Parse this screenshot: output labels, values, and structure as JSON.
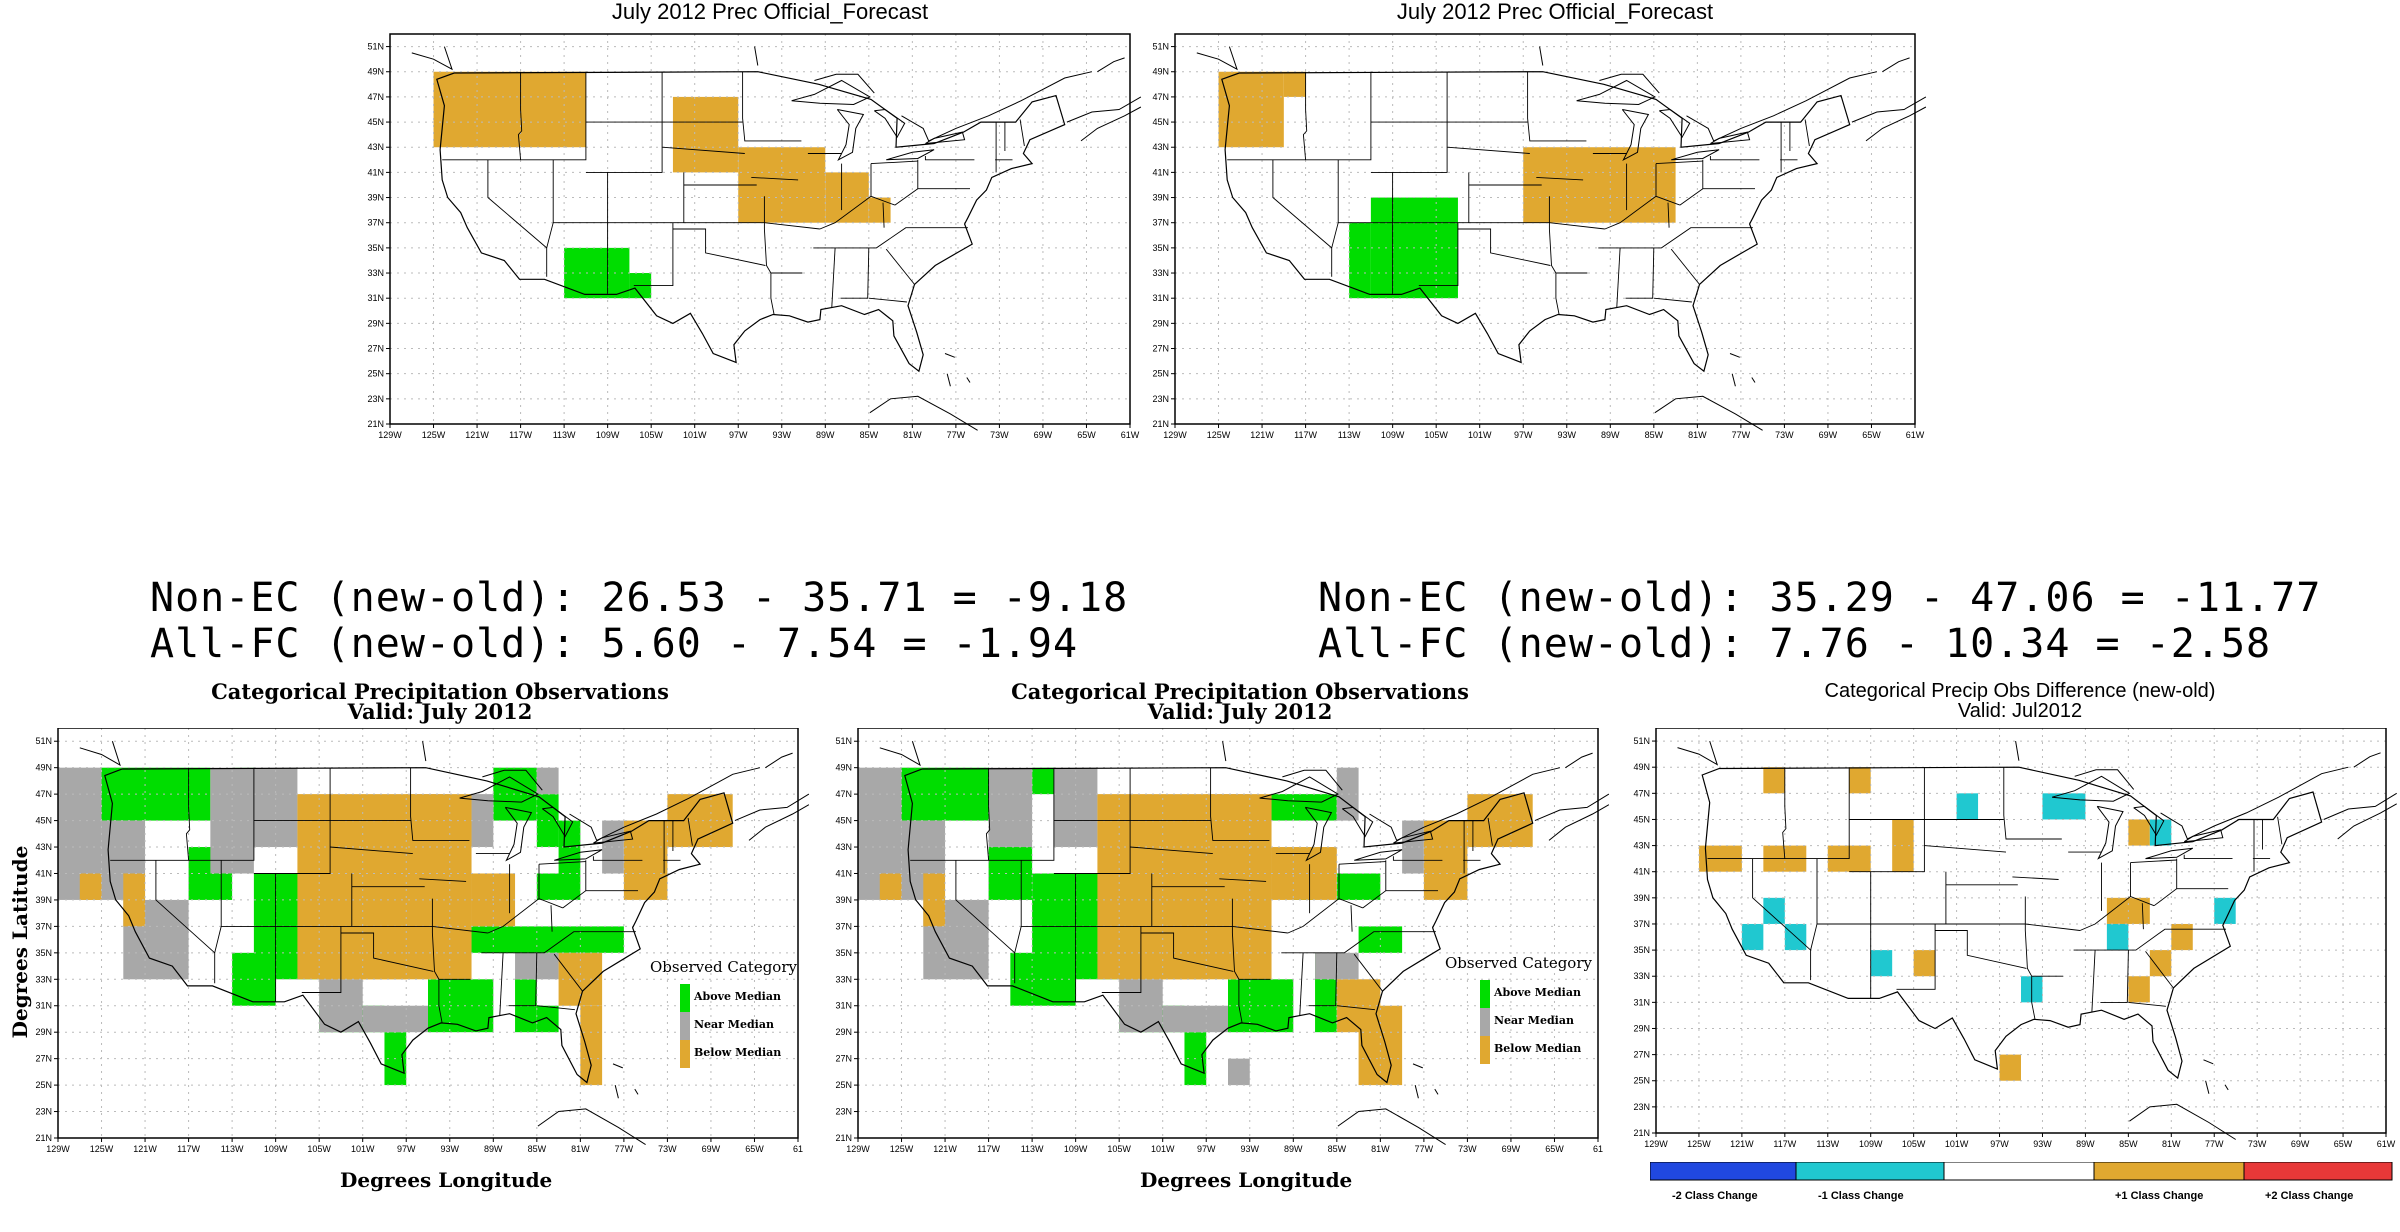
{
  "colors": {
    "above": "#00dd00",
    "near": "#a8a8a8",
    "below": "#e0a830",
    "minus1": "#20c8d0",
    "minus2": "#2048e0",
    "plus1": "#e0a830",
    "plus2": "#e83838"
  },
  "axis": {
    "lat_ticks": [
      "21N",
      "23N",
      "25N",
      "27N",
      "29N",
      "31N",
      "33N",
      "35N",
      "37N",
      "39N",
      "41N",
      "43N",
      "45N",
      "47N",
      "49N",
      "51N"
    ],
    "lon_ticks_top": [
      "129W",
      "125W",
      "121W",
      "117W",
      "113W",
      "109W",
      "105W",
      "101W",
      "97W",
      "93W",
      "89W",
      "85W",
      "81W",
      "77W",
      "73W",
      "69W",
      "65W",
      "61W"
    ],
    "lon_ticks_bottom": [
      "129W",
      "125W",
      "121W",
      "117W",
      "113W",
      "109W",
      "105W",
      "101W",
      "97W",
      "93W",
      "89W",
      "85W",
      "81W",
      "77W",
      "73W",
      "69W",
      "65W",
      "61"
    ],
    "xlabel": "Degrees Longitude",
    "ylabel": "Degrees Latitude"
  },
  "top_left": {
    "title": "July 2012 Prec Official_Forecast",
    "cells": {
      "below": [
        [
          -125,
          49,
          -111,
          43
        ],
        [
          -103,
          47,
          -97,
          41
        ],
        [
          -97,
          43,
          -89,
          37
        ],
        [
          -89,
          41,
          -85,
          37
        ],
        [
          -85,
          39,
          -83,
          37
        ]
      ],
      "above": [
        [
          -113,
          35,
          -107,
          31
        ],
        [
          -107,
          33,
          -105,
          31
        ]
      ]
    }
  },
  "top_right": {
    "title": "July 2012 Prec Official_Forecast",
    "cells": {
      "below": [
        [
          -125,
          49,
          -119,
          43
        ],
        [
          -119,
          49,
          -117,
          47
        ],
        [
          -97,
          43,
          -83,
          37
        ]
      ],
      "above": [
        [
          -111,
          39,
          -103,
          31
        ],
        [
          -113,
          37,
          -111,
          31
        ]
      ]
    }
  },
  "scores_left": {
    "line1": "Non-EC (new-old): 26.53 - 35.71 = -9.18",
    "line2": "All-FC (new-old): 5.60 - 7.54 = -1.94"
  },
  "scores_right": {
    "line1": "Non-EC (new-old): 35.29 - 47.06 = -11.77",
    "line2": "All-FC (new-old): 7.76 - 10.34 = -2.58"
  },
  "obs_left": {
    "title": "Categorical Precipitation Observations",
    "subtitle": "Valid: July 2012"
  },
  "obs_right": {
    "title": "Categorical Precipitation Observations",
    "subtitle": "Valid: July 2012"
  },
  "legend": {
    "title": "Observed Category",
    "items": [
      "Above Median",
      "Near Median",
      "Below Median"
    ]
  },
  "diff": {
    "title": "Categorical Precip Obs Difference (new-old)",
    "subtitle": "Valid: Jul2012",
    "colorbar": [
      "-2 Class Change",
      "-1 Class Change",
      "+1 Class Change",
      "+2 Class Change"
    ],
    "cells": {
      "plus1": [
        [
          -125,
          43,
          -121,
          41
        ],
        [
          -119,
          49,
          -117,
          47
        ],
        [
          -119,
          43,
          -115,
          41
        ],
        [
          -111,
          49,
          -109,
          47
        ],
        [
          -113,
          43,
          -109,
          41
        ],
        [
          -107,
          45,
          -105,
          41
        ],
        [
          -105,
          35,
          -103,
          33
        ],
        [
          -97,
          27,
          -95,
          25
        ],
        [
          -87,
          39,
          -83,
          37
        ],
        [
          -85,
          45,
          -83,
          43
        ],
        [
          -81,
          37,
          -79,
          35
        ],
        [
          -85,
          33,
          -83,
          31
        ],
        [
          -83,
          35,
          -81,
          33
        ]
      ],
      "minus1": [
        [
          -119,
          39,
          -117,
          37
        ],
        [
          -117,
          37,
          -115,
          35
        ],
        [
          -121,
          37,
          -119,
          35
        ],
        [
          -109,
          35,
          -107,
          33
        ],
        [
          -95,
          33,
          -93,
          31
        ],
        [
          -93,
          47,
          -89,
          45
        ],
        [
          -101,
          47,
          -99,
          45
        ],
        [
          -87,
          37,
          -85,
          35
        ],
        [
          -83,
          45,
          -81,
          43
        ],
        [
          -77,
          39,
          -75,
          37
        ]
      ]
    }
  },
  "obs_left_cells": {
    "above": [
      [
        -125,
        49,
        -115,
        45
      ],
      [
        -113,
        49,
        -111,
        47
      ],
      [
        -117,
        43,
        -113,
        39
      ],
      [
        -111,
        41,
        -105,
        33
      ],
      [
        -113,
        35,
        -109,
        31
      ],
      [
        -105,
        31,
        -99,
        29
      ],
      [
        -99,
        29,
        -97,
        25
      ],
      [
        -95,
        33,
        -89,
        29
      ],
      [
        -87,
        33,
        -85,
        29
      ],
      [
        -85,
        31,
        -83,
        29
      ],
      [
        -89,
        49,
        -85,
        45
      ],
      [
        -85,
        47,
        -83,
        43
      ],
      [
        -91,
        37,
        -77,
        35
      ],
      [
        -85,
        41,
        -81,
        39
      ],
      [
        -83,
        45,
        -81,
        41
      ]
    ],
    "near": [
      [
        -129,
        49,
        -125,
        39
      ],
      [
        -125,
        45,
        -121,
        39
      ],
      [
        -115,
        49,
        -111,
        41
      ],
      [
        -111,
        49,
        -107,
        43
      ],
      [
        -123,
        39,
        -117,
        33
      ],
      [
        -105,
        33,
        -101,
        29
      ],
      [
        -101,
        31,
        -95,
        29
      ],
      [
        -97,
        47,
        -93,
        43
      ],
      [
        -91,
        47,
        -89,
        43
      ],
      [
        -85,
        49,
        -83,
        47
      ],
      [
        -79,
        45,
        -77,
        41
      ],
      [
        -87,
        35,
        -83,
        33
      ]
    ],
    "below": [
      [
        -107,
        47,
        -91,
        33
      ],
      [
        -105,
        41,
        -97,
        33
      ],
      [
        -91,
        41,
        -87,
        37
      ],
      [
        -77,
        45,
        -73,
        39
      ],
      [
        -73,
        47,
        -67,
        43
      ],
      [
        -81,
        31,
        -79,
        25
      ],
      [
        -83,
        35,
        -79,
        31
      ],
      [
        -123,
        41,
        -121,
        37
      ],
      [
        -127,
        41,
        -125,
        39
      ]
    ]
  },
  "obs_right_cells": {
    "above": [
      [
        -125,
        49,
        -117,
        45
      ],
      [
        -113,
        49,
        -111,
        47
      ],
      [
        -117,
        43,
        -113,
        39
      ],
      [
        -113,
        41,
        -105,
        33
      ],
      [
        -115,
        35,
        -109,
        31
      ],
      [
        -105,
        31,
        -99,
        29
      ],
      [
        -99,
        29,
        -97,
        25
      ],
      [
        -95,
        33,
        -89,
        29
      ],
      [
        -87,
        35,
        -85,
        29
      ],
      [
        -91,
        47,
        -85,
        45
      ],
      [
        -89,
        41,
        -87,
        39
      ],
      [
        -85,
        41,
        -81,
        39
      ],
      [
        -83,
        37,
        -79,
        35
      ]
    ],
    "near": [
      [
        -129,
        49,
        -125,
        39
      ],
      [
        -125,
        45,
        -121,
        39
      ],
      [
        -117,
        49,
        -113,
        43
      ],
      [
        -111,
        49,
        -107,
        43
      ],
      [
        -123,
        39,
        -117,
        33
      ],
      [
        -105,
        33,
        -101,
        29
      ],
      [
        -101,
        31,
        -95,
        29
      ],
      [
        -97,
        47,
        -93,
        43
      ],
      [
        -85,
        49,
        -83,
        45
      ],
      [
        -79,
        45,
        -77,
        41
      ],
      [
        -87,
        35,
        -83,
        33
      ],
      [
        -95,
        27,
        -93,
        25
      ]
    ],
    "below": [
      [
        -107,
        47,
        -91,
        33
      ],
      [
        -105,
        41,
        -97,
        33
      ],
      [
        -91,
        43,
        -85,
        39
      ],
      [
        -77,
        45,
        -73,
        39
      ],
      [
        -73,
        47,
        -67,
        43
      ],
      [
        -83,
        31,
        -79,
        25
      ],
      [
        -85,
        33,
        -81,
        29
      ],
      [
        -123,
        41,
        -121,
        37
      ],
      [
        -127,
        41,
        -125,
        39
      ]
    ]
  }
}
